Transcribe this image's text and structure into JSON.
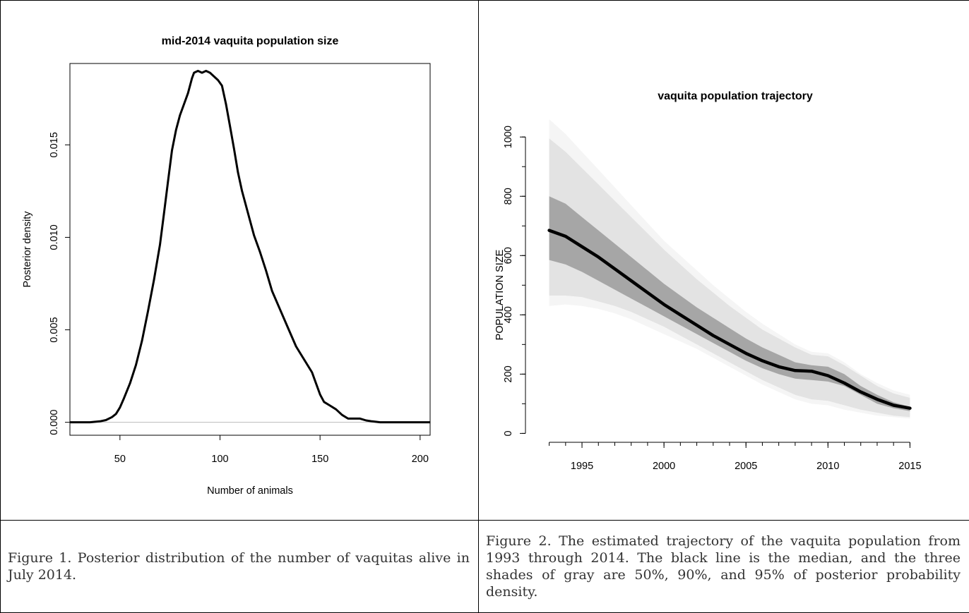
{
  "chart_data": [
    {
      "type": "line",
      "title": "mid-2014 vaquita population size",
      "xlabel": "Number of animals",
      "ylabel": "Posterior density",
      "xlim": [
        25,
        205
      ],
      "ylim": [
        -0.0007,
        0.0194
      ],
      "xticks": [
        "50",
        "100",
        "150",
        "200"
      ],
      "xtick_values": [
        50,
        100,
        150,
        200
      ],
      "yticks": [
        "0.000",
        "0.005",
        "0.010",
        "0.015"
      ],
      "ytick_values": [
        0,
        0.005,
        0.01,
        0.015
      ],
      "grid": false,
      "baseline_color": "#bbbbbb",
      "line_color": "#000000",
      "series": [
        {
          "x": [
            25,
            30,
            35,
            40,
            43,
            46,
            48,
            50,
            52,
            55,
            58,
            61,
            64,
            67,
            70,
            72,
            74,
            76,
            78,
            80,
            82,
            84,
            86,
            87,
            89,
            91,
            93,
            95,
            97,
            99,
            101,
            103,
            105,
            107,
            109,
            111,
            114,
            117,
            120,
            123,
            126,
            130,
            134,
            138,
            142,
            146,
            148,
            150,
            152,
            155,
            158,
            161,
            164,
            167,
            170,
            173,
            176,
            180,
            185,
            190,
            195,
            200,
            205
          ],
          "y": [
            0,
            0,
            0,
            5e-05,
            0.00012,
            0.00028,
            0.00045,
            0.0008,
            0.0013,
            0.0021,
            0.0031,
            0.0044,
            0.006,
            0.0077,
            0.0096,
            0.0113,
            0.013,
            0.0147,
            0.0158,
            0.0166,
            0.0172,
            0.0178,
            0.0186,
            0.0189,
            0.019,
            0.0189,
            0.019,
            0.0189,
            0.0187,
            0.0185,
            0.0182,
            0.0172,
            0.016,
            0.0148,
            0.0135,
            0.0125,
            0.0113,
            0.0101,
            0.0092,
            0.0082,
            0.0071,
            0.0061,
            0.0051,
            0.0041,
            0.0034,
            0.0027,
            0.0021,
            0.0015,
            0.0011,
            0.0009,
            0.0007,
            0.0004,
            0.0002,
            0.0002,
            0.0002,
            0.0001,
            5e-05,
            0,
            0,
            0,
            0,
            0,
            0
          ]
        }
      ]
    },
    {
      "type": "area",
      "title": "vaquita population trajectory",
      "xlabel": "",
      "ylabel": "POPULATION SIZE",
      "xlim": [
        1992.5,
        2015.5
      ],
      "ylim": [
        -30,
        1060
      ],
      "xticks": [
        "1995",
        "2000",
        "2005",
        "2010",
        "2015"
      ],
      "xtick_values": [
        1995,
        2000,
        2005,
        2010,
        2015
      ],
      "yticks": [
        "0",
        "200",
        "400",
        "600",
        "800",
        "1000"
      ],
      "ytick_values": [
        0,
        200,
        400,
        600,
        800,
        1000
      ],
      "grid": false,
      "x": [
        1993,
        1994,
        1995,
        1996,
        1997,
        1998,
        1999,
        2000,
        2001,
        2002,
        2003,
        2004,
        2005,
        2006,
        2007,
        2008,
        2009,
        2010,
        2011,
        2012,
        2013,
        2014,
        2015
      ],
      "bands": [
        {
          "level": "95%",
          "color": "#f5f5f5",
          "upper": [
            1060,
            1010,
            950,
            890,
            830,
            770,
            710,
            650,
            600,
            550,
            500,
            455,
            410,
            370,
            335,
            300,
            275,
            270,
            240,
            200,
            170,
            145,
            130
          ],
          "lower": [
            430,
            435,
            430,
            420,
            405,
            385,
            360,
            335,
            310,
            285,
            255,
            225,
            195,
            165,
            140,
            115,
            100,
            95,
            80,
            70,
            60,
            55,
            50
          ]
        },
        {
          "level": "90%",
          "color": "#e3e3e3",
          "upper": [
            995,
            950,
            895,
            840,
            785,
            730,
            675,
            620,
            570,
            520,
            475,
            430,
            390,
            350,
            320,
            290,
            265,
            260,
            230,
            195,
            160,
            135,
            120
          ],
          "lower": [
            465,
            465,
            460,
            445,
            430,
            410,
            385,
            360,
            330,
            300,
            270,
            240,
            210,
            180,
            155,
            130,
            115,
            110,
            95,
            80,
            70,
            60,
            55
          ]
        },
        {
          "level": "50%",
          "color": "#a6a6a6",
          "upper": [
            800,
            775,
            730,
            685,
            640,
            595,
            550,
            505,
            465,
            425,
            390,
            355,
            320,
            290,
            265,
            240,
            230,
            225,
            200,
            160,
            130,
            105,
            90
          ],
          "lower": [
            585,
            570,
            545,
            515,
            485,
            455,
            425,
            395,
            365,
            335,
            305,
            275,
            245,
            220,
            200,
            185,
            180,
            175,
            160,
            130,
            100,
            85,
            75
          ]
        }
      ],
      "series": [
        {
          "color": "#000000",
          "values": [
            685,
            665,
            630,
            595,
            555,
            515,
            475,
            435,
            400,
            365,
            330,
            300,
            270,
            245,
            225,
            212,
            210,
            195,
            170,
            140,
            115,
            95,
            85
          ]
        }
      ]
    }
  ],
  "captions": {
    "figure1": "Figure 1. Posterior distribution of the number of vaquitas alive in July 2014.",
    "figure2": "Figure 2. The estimated trajectory of the vaquita population from 1993 through 2014.  The black line is the median, and the three shades of gray are 50%, 90%, and 95% of posterior probability density."
  }
}
